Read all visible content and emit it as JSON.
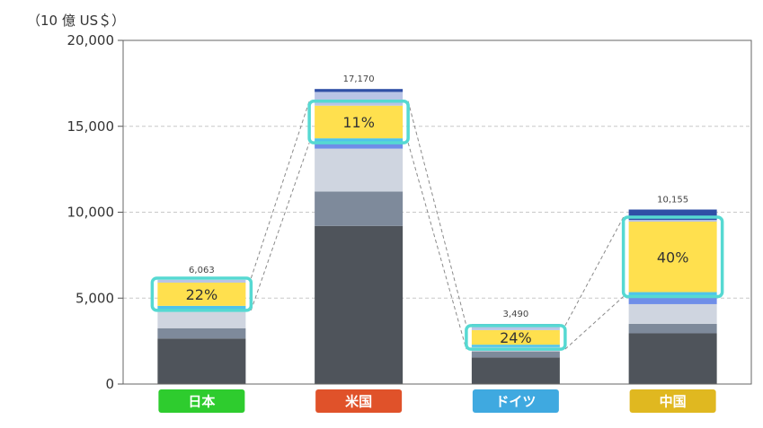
{
  "chart_data": {
    "type": "bar",
    "stacked": true,
    "unit_label": "（10 億 US＄）",
    "categories": [
      "日本",
      "米国",
      "ドイツ",
      "中国"
    ],
    "category_colors": [
      "#2ecc2e",
      "#e0522a",
      "#3fa9e0",
      "#e0b820"
    ],
    "ylim": [
      0,
      20000
    ],
    "yticks": [
      0,
      5000,
      10000,
      15000,
      20000
    ],
    "ytick_labels": [
      "0",
      "5,000",
      "10,000",
      "15,000",
      "20,000"
    ],
    "grid": true,
    "totals": [
      6063,
      17170,
      3490,
      10155
    ],
    "total_labels": [
      "6,063",
      "17,170",
      "3,490",
      "10,155"
    ],
    "highlight_labels": [
      "22%",
      "11%",
      "24%",
      "40%"
    ],
    "segment_colors": [
      "#4f545b",
      "#7e8a9b",
      "#cfd5e0",
      "#6f8ee8",
      "#4fc4ea",
      "#ffe04e",
      "#b9c4e6",
      "#2f4fa6"
    ],
    "highlight_segment_index": 5,
    "segments": [
      [
        2650,
        600,
        1000,
        0,
        300,
        1350,
        163,
        0
      ],
      [
        9200,
        2000,
        2500,
        300,
        300,
        1900,
        800,
        170
      ],
      [
        1550,
        350,
        250,
        0,
        140,
        850,
        250,
        100
      ],
      [
        2950,
        550,
        1150,
        400,
        300,
        4100,
        100,
        605
      ]
    ]
  }
}
